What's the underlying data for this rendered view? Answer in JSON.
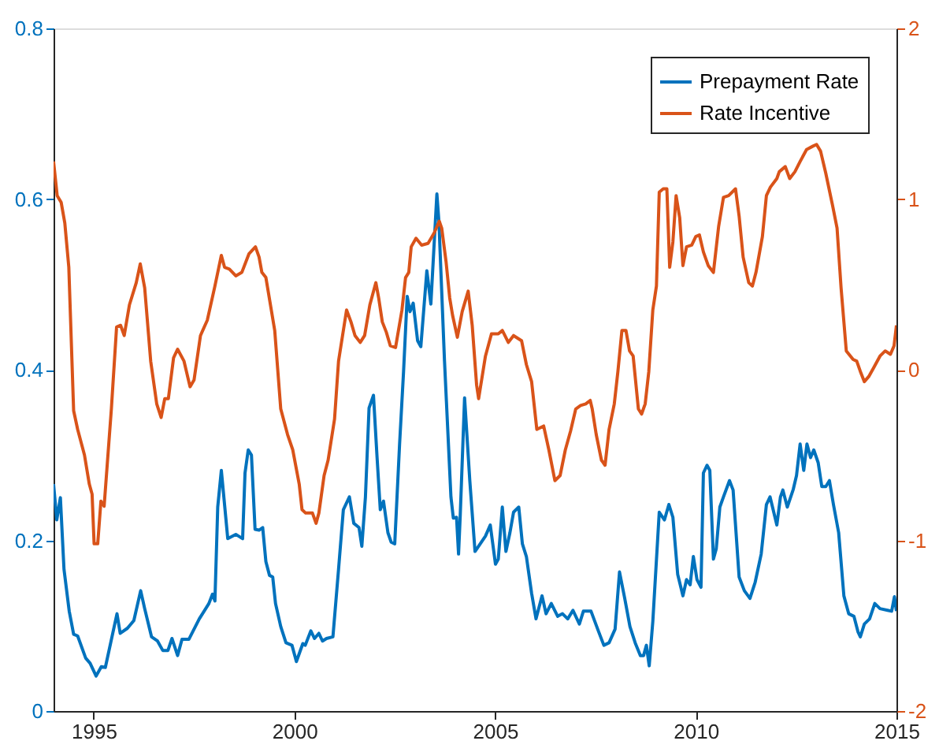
{
  "chart_data": {
    "type": "line",
    "xlim": [
      1994,
      2015
    ],
    "xticks": [
      1995,
      2000,
      2005,
      2010,
      2015
    ],
    "ylim": [
      0,
      0.8
    ],
    "yticks": [
      0,
      0.2,
      0.4,
      0.6,
      0.8
    ],
    "y2lim": [
      -2,
      2
    ],
    "y2ticks": [
      -2,
      -1,
      0,
      1,
      2
    ],
    "grid": false,
    "legend": "top right",
    "marker": "none",
    "line_style": "solid",
    "series": [
      {
        "name": "Prepayment Rate",
        "color": "#0072bd",
        "axis": "y",
        "x": [
          1994.0,
          1994.08,
          1994.17,
          1994.26,
          1994.39,
          1994.5,
          1994.6,
          1994.8,
          1994.91,
          1995.06,
          1995.19,
          1995.29,
          1995.58,
          1995.66,
          1995.84,
          1996.0,
          1996.17,
          1996.27,
          1996.44,
          1996.59,
          1996.72,
          1996.85,
          1996.95,
          1997.09,
          1997.2,
          1997.37,
          1997.63,
          1997.87,
          1997.96,
          1998.02,
          1998.09,
          1998.18,
          1998.34,
          1998.54,
          1998.71,
          1998.77,
          1998.85,
          1998.93,
          1999.02,
          1999.12,
          1999.21,
          1999.29,
          1999.38,
          1999.46,
          1999.53,
          1999.66,
          1999.79,
          1999.94,
          2000.05,
          2000.21,
          2000.27,
          2000.41,
          2000.5,
          2000.61,
          2000.7,
          2000.8,
          2000.96,
          2001.1,
          2001.22,
          2001.37,
          2001.48,
          2001.61,
          2001.68,
          2001.77,
          2001.86,
          2001.97,
          2002.06,
          2002.14,
          2002.22,
          2002.33,
          2002.41,
          2002.5,
          2002.62,
          2002.72,
          2002.81,
          2002.88,
          2002.96,
          2003.07,
          2003.15,
          2003.3,
          2003.4,
          2003.55,
          2003.6,
          2003.74,
          2003.9,
          2003.96,
          2004.04,
          2004.09,
          2004.13,
          2004.24,
          2004.37,
          2004.5,
          2004.63,
          2004.76,
          2004.88,
          2005.01,
          2005.08,
          2005.18,
          2005.27,
          2005.37,
          2005.46,
          2005.59,
          2005.68,
          2005.78,
          2005.91,
          2006.02,
          2006.17,
          2006.27,
          2006.4,
          2006.56,
          2006.68,
          2006.81,
          2006.94,
          2007.1,
          2007.2,
          2007.39,
          2007.58,
          2007.71,
          2007.84,
          2007.99,
          2008.1,
          2008.23,
          2008.36,
          2008.49,
          2008.62,
          2008.7,
          2008.77,
          2008.84,
          2008.93,
          2009.09,
          2009.22,
          2009.33,
          2009.43,
          2009.55,
          2009.68,
          2009.77,
          2009.86,
          2009.94,
          2010.03,
          2010.13,
          2010.19,
          2010.28,
          2010.35,
          2010.44,
          2010.51,
          2010.6,
          2010.69,
          2010.84,
          2010.93,
          2011.08,
          2011.21,
          2011.35,
          2011.48,
          2011.63,
          2011.76,
          2011.85,
          2012.02,
          2012.11,
          2012.17,
          2012.28,
          2012.43,
          2012.51,
          2012.6,
          2012.69,
          2012.77,
          2012.86,
          2012.94,
          2013.05,
          2013.14,
          2013.24,
          2013.33,
          2013.43,
          2013.56,
          2013.69,
          2013.81,
          2013.94,
          2014.04,
          2014.1,
          2014.2,
          2014.33,
          2014.46,
          2014.59,
          2014.78,
          2014.88,
          2014.95,
          2015.0
        ],
        "values": [
          0.266,
          0.224,
          0.25,
          0.166,
          0.117,
          0.09,
          0.088,
          0.062,
          0.056,
          0.041,
          0.052,
          0.051,
          0.114,
          0.091,
          0.097,
          0.106,
          0.141,
          0.12,
          0.087,
          0.082,
          0.071,
          0.071,
          0.085,
          0.065,
          0.084,
          0.084,
          0.108,
          0.126,
          0.137,
          0.129,
          0.239,
          0.282,
          0.202,
          0.207,
          0.202,
          0.279,
          0.306,
          0.3,
          0.213,
          0.212,
          0.215,
          0.175,
          0.159,
          0.157,
          0.126,
          0.099,
          0.08,
          0.077,
          0.058,
          0.079,
          0.077,
          0.094,
          0.085,
          0.091,
          0.082,
          0.085,
          0.087,
          0.166,
          0.236,
          0.251,
          0.22,
          0.215,
          0.193,
          0.251,
          0.355,
          0.37,
          0.297,
          0.236,
          0.246,
          0.209,
          0.198,
          0.196,
          0.312,
          0.398,
          0.486,
          0.468,
          0.478,
          0.434,
          0.427,
          0.516,
          0.477,
          0.606,
          0.574,
          0.41,
          0.251,
          0.226,
          0.227,
          0.184,
          0.227,
          0.367,
          0.27,
          0.187,
          0.196,
          0.205,
          0.218,
          0.172,
          0.178,
          0.239,
          0.187,
          0.209,
          0.233,
          0.239,
          0.196,
          0.181,
          0.138,
          0.108,
          0.135,
          0.114,
          0.126,
          0.111,
          0.114,
          0.108,
          0.118,
          0.102,
          0.117,
          0.117,
          0.093,
          0.077,
          0.08,
          0.096,
          0.163,
          0.132,
          0.099,
          0.08,
          0.065,
          0.065,
          0.077,
          0.053,
          0.105,
          0.233,
          0.224,
          0.242,
          0.227,
          0.16,
          0.135,
          0.154,
          0.148,
          0.181,
          0.154,
          0.145,
          0.279,
          0.288,
          0.282,
          0.178,
          0.19,
          0.239,
          0.251,
          0.27,
          0.259,
          0.157,
          0.141,
          0.132,
          0.151,
          0.184,
          0.242,
          0.251,
          0.218,
          0.251,
          0.259,
          0.239,
          0.26,
          0.276,
          0.313,
          0.282,
          0.313,
          0.297,
          0.306,
          0.291,
          0.263,
          0.263,
          0.27,
          0.242,
          0.209,
          0.135,
          0.114,
          0.111,
          0.093,
          0.087,
          0.102,
          0.108,
          0.126,
          0.12,
          0.118,
          0.117,
          0.134,
          0.117
        ]
      },
      {
        "name": "Rate Incentive",
        "color": "#d95319",
        "axis": "y2",
        "x": [
          1994.0,
          1994.09,
          1994.19,
          1994.28,
          1994.38,
          1994.5,
          1994.6,
          1994.77,
          1994.89,
          1994.96,
          1995.01,
          1995.1,
          1995.18,
          1995.26,
          1995.44,
          1995.57,
          1995.67,
          1995.76,
          1995.89,
          1996.06,
          1996.16,
          1996.27,
          1996.42,
          1996.57,
          1996.68,
          1996.77,
          1996.86,
          1996.99,
          1997.09,
          1997.25,
          1997.4,
          1997.5,
          1997.66,
          1997.83,
          1998.02,
          1998.18,
          1998.26,
          1998.38,
          1998.54,
          1998.69,
          1998.87,
          1999.03,
          1999.12,
          1999.19,
          1999.29,
          1999.51,
          1999.66,
          1999.83,
          1999.96,
          2000.12,
          2000.19,
          2000.28,
          2000.45,
          2000.54,
          2000.61,
          2000.74,
          2000.84,
          2001.0,
          2001.1,
          2001.3,
          2001.41,
          2001.51,
          2001.64,
          2001.75,
          2001.88,
          2002.03,
          2002.1,
          2002.19,
          2002.29,
          2002.39,
          2002.52,
          2002.68,
          2002.77,
          2002.85,
          2002.91,
          2003.03,
          2003.17,
          2003.33,
          2003.48,
          2003.61,
          2003.67,
          2003.78,
          2003.87,
          2003.94,
          2004.06,
          2004.18,
          2004.33,
          2004.43,
          2004.54,
          2004.59,
          2004.76,
          2004.91,
          2005.08,
          2005.18,
          2005.33,
          2005.46,
          2005.66,
          2005.78,
          2005.91,
          2006.04,
          2006.21,
          2006.34,
          2006.49,
          2006.62,
          2006.75,
          2006.88,
          2007.01,
          2007.13,
          2007.26,
          2007.37,
          2007.42,
          2007.52,
          2007.65,
          2007.74,
          2007.84,
          2007.97,
          2008.06,
          2008.16,
          2008.26,
          2008.35,
          2008.44,
          2008.57,
          2008.65,
          2008.74,
          2008.83,
          2008.93,
          2009.02,
          2009.09,
          2009.19,
          2009.28,
          2009.35,
          2009.43,
          2009.51,
          2009.6,
          2009.68,
          2009.77,
          2009.9,
          2010.0,
          2010.09,
          2010.19,
          2010.31,
          2010.44,
          2010.57,
          2010.69,
          2010.82,
          2010.99,
          2011.08,
          2011.18,
          2011.32,
          2011.41,
          2011.5,
          2011.66,
          2011.76,
          2011.86,
          2012.02,
          2012.08,
          2012.23,
          2012.34,
          2012.47,
          2012.6,
          2012.76,
          2012.92,
          2013.01,
          2013.11,
          2013.24,
          2013.41,
          2013.52,
          2013.62,
          2013.75,
          2013.92,
          2014.01,
          2014.1,
          2014.2,
          2014.31,
          2014.43,
          2014.59,
          2014.72,
          2014.85,
          2014.94,
          2015.0
        ],
        "values": [
          1.22,
          1.02,
          0.98,
          0.86,
          0.6,
          -0.24,
          -0.35,
          -0.5,
          -0.67,
          -0.73,
          -1.02,
          -1.02,
          -0.77,
          -0.8,
          -0.23,
          0.25,
          0.26,
          0.2,
          0.38,
          0.51,
          0.62,
          0.48,
          0.05,
          -0.2,
          -0.28,
          -0.17,
          -0.17,
          0.07,
          0.12,
          0.05,
          -0.1,
          -0.06,
          0.2,
          0.29,
          0.49,
          0.67,
          0.6,
          0.59,
          0.55,
          0.57,
          0.68,
          0.72,
          0.66,
          0.57,
          0.54,
          0.23,
          -0.23,
          -0.38,
          -0.47,
          -0.67,
          -0.82,
          -0.84,
          -0.84,
          -0.9,
          -0.84,
          -0.62,
          -0.53,
          -0.29,
          0.05,
          0.35,
          0.28,
          0.2,
          0.16,
          0.2,
          0.38,
          0.51,
          0.42,
          0.28,
          0.22,
          0.14,
          0.13,
          0.35,
          0.54,
          0.57,
          0.72,
          0.77,
          0.73,
          0.74,
          0.8,
          0.87,
          0.83,
          0.63,
          0.42,
          0.32,
          0.19,
          0.34,
          0.46,
          0.26,
          -0.09,
          -0.17,
          0.08,
          0.21,
          0.21,
          0.23,
          0.16,
          0.2,
          0.17,
          0.03,
          -0.07,
          -0.35,
          -0.33,
          -0.47,
          -0.65,
          -0.62,
          -0.47,
          -0.36,
          -0.23,
          -0.21,
          -0.2,
          -0.18,
          -0.23,
          -0.38,
          -0.53,
          -0.56,
          -0.35,
          -0.2,
          -0.01,
          0.23,
          0.23,
          0.11,
          0.08,
          -0.23,
          -0.26,
          -0.2,
          -0.01,
          0.35,
          0.49,
          1.04,
          1.06,
          1.06,
          0.6,
          0.75,
          1.02,
          0.89,
          0.61,
          0.72,
          0.73,
          0.78,
          0.79,
          0.69,
          0.61,
          0.57,
          0.84,
          1.01,
          1.02,
          1.06,
          0.9,
          0.66,
          0.51,
          0.49,
          0.57,
          0.78,
          1.02,
          1.07,
          1.12,
          1.16,
          1.19,
          1.12,
          1.16,
          1.22,
          1.29,
          1.31,
          1.32,
          1.28,
          1.15,
          0.96,
          0.83,
          0.48,
          0.11,
          0.06,
          0.05,
          -0.01,
          -0.07,
          -0.04,
          0.01,
          0.08,
          0.11,
          0.09,
          0.14,
          0.26
        ]
      }
    ]
  }
}
